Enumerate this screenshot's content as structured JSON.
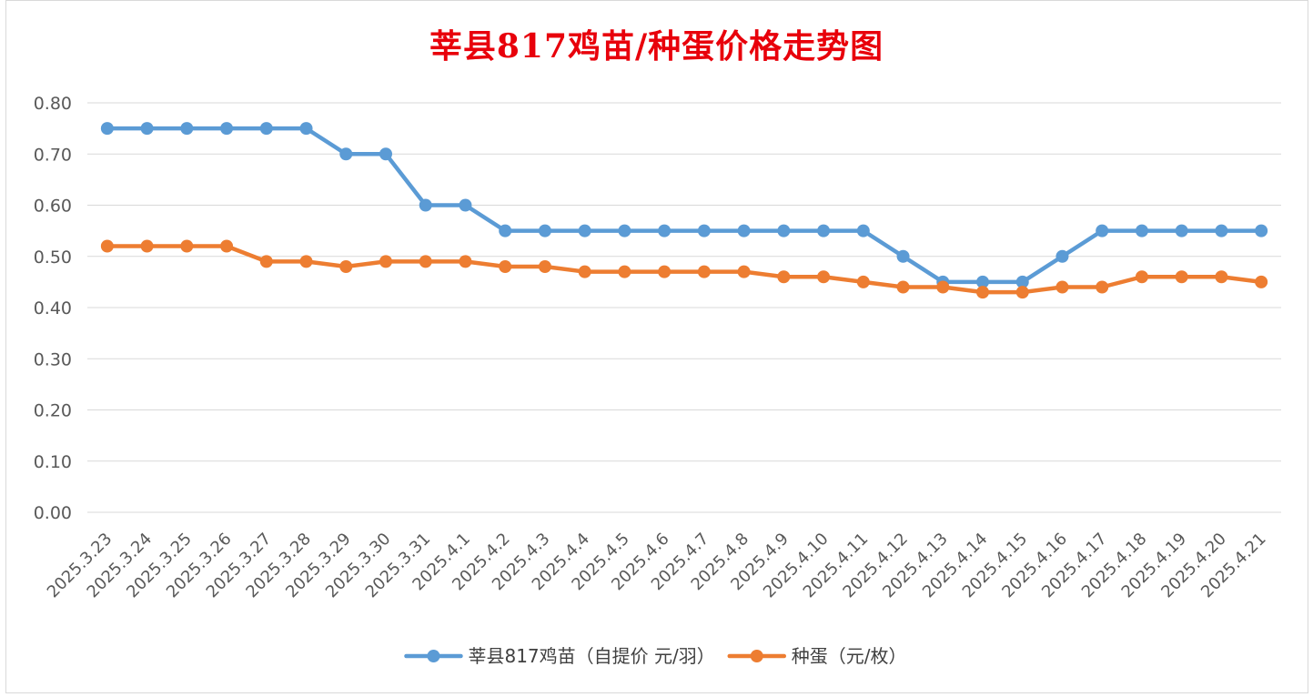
{
  "chart_data": {
    "type": "line",
    "title": "莘县817鸡苗/种蛋价格走势图",
    "xlabel": "",
    "ylabel": "",
    "ylim": [
      0,
      0.8
    ],
    "ytick_step": 0.1,
    "grid": true,
    "legend_position": "bottom",
    "categories": [
      "2025.3.23",
      "2025.3.24",
      "2025.3.25",
      "2025.3.26",
      "2025.3.27",
      "2025.3.28",
      "2025.3.29",
      "2025.3.30",
      "2025.3.31",
      "2025.4.1",
      "2025.4.2",
      "2025.4.3",
      "2025.4.4",
      "2025.4.5",
      "2025.4.6",
      "2025.4.7",
      "2025.4.8",
      "2025.4.9",
      "2025.4.10",
      "2025.4.11",
      "2025.4.12",
      "2025.4.13",
      "2025.4.14",
      "2025.4.15",
      "2025.4.16",
      "2025.4.17",
      "2025.4.18",
      "2025.4.19",
      "2025.4.20",
      "2025.4.21"
    ],
    "series": [
      {
        "name": "莘县817鸡苗（自提价 元/羽）",
        "color": "#5b9bd5",
        "values": [
          0.75,
          0.75,
          0.75,
          0.75,
          0.75,
          0.75,
          0.7,
          0.7,
          0.6,
          0.6,
          0.55,
          0.55,
          0.55,
          0.55,
          0.55,
          0.55,
          0.55,
          0.55,
          0.55,
          0.55,
          0.5,
          0.45,
          0.45,
          0.45,
          0.5,
          0.55,
          0.55,
          0.55,
          0.55,
          0.55
        ]
      },
      {
        "name": "种蛋（元/枚）",
        "color": "#ed7d31",
        "values": [
          0.52,
          0.52,
          0.52,
          0.52,
          0.49,
          0.49,
          0.48,
          0.49,
          0.49,
          0.49,
          0.48,
          0.48,
          0.47,
          0.47,
          0.47,
          0.47,
          0.47,
          0.46,
          0.46,
          0.45,
          0.44,
          0.44,
          0.43,
          0.43,
          0.44,
          0.44,
          0.46,
          0.46,
          0.46,
          0.45
        ]
      }
    ]
  }
}
